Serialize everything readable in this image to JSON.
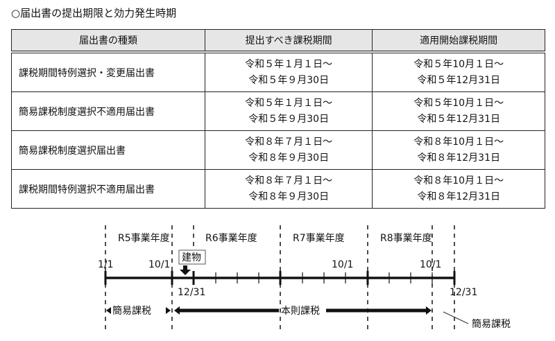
{
  "title": "○届出書の提出期限と効力発生時期",
  "table": {
    "headers": [
      "届出書の種類",
      "提出すべき課税期間",
      "適用開始課税期間"
    ],
    "rows": [
      {
        "name": "課税期間特例選択・変更届出書",
        "submit": [
          "令和５年１月１日～",
          "令和５年９月30日"
        ],
        "apply": [
          "令和５年10月１日～",
          "令和５年12月31日"
        ]
      },
      {
        "name": "簡易課税制度選択不適用届出書",
        "submit": [
          "令和５年１月１日～",
          "令和５年９月30日"
        ],
        "apply": [
          "令和５年10月１日～",
          "令和５年12月31日"
        ]
      },
      {
        "name": "簡易課税制度選択届出書",
        "submit": [
          "令和８年７月１日～",
          "令和８年９月30日"
        ],
        "apply": [
          "令和８年10月１日～",
          "令和８年12月31日"
        ]
      },
      {
        "name": "課税期間特例選択不適用届出書",
        "submit": [
          "令和８年７月１日～",
          "令和８年９月30日"
        ],
        "apply": [
          "令和８年10月１日～",
          "令和８年12月31日"
        ]
      }
    ]
  },
  "timeline": {
    "years": [
      "R5事業年度",
      "R6事業年度",
      "R7事業年度",
      "R8事業年度"
    ],
    "top_dates": [
      "1/1",
      "10/1",
      "10/1",
      "10/1"
    ],
    "bottom_dates": [
      "12/31",
      "12/31"
    ],
    "building_label": "建物",
    "simple_tax_1": "簡易課税",
    "standard_tax": "本則課税",
    "simple_tax_2": "簡易課税"
  }
}
